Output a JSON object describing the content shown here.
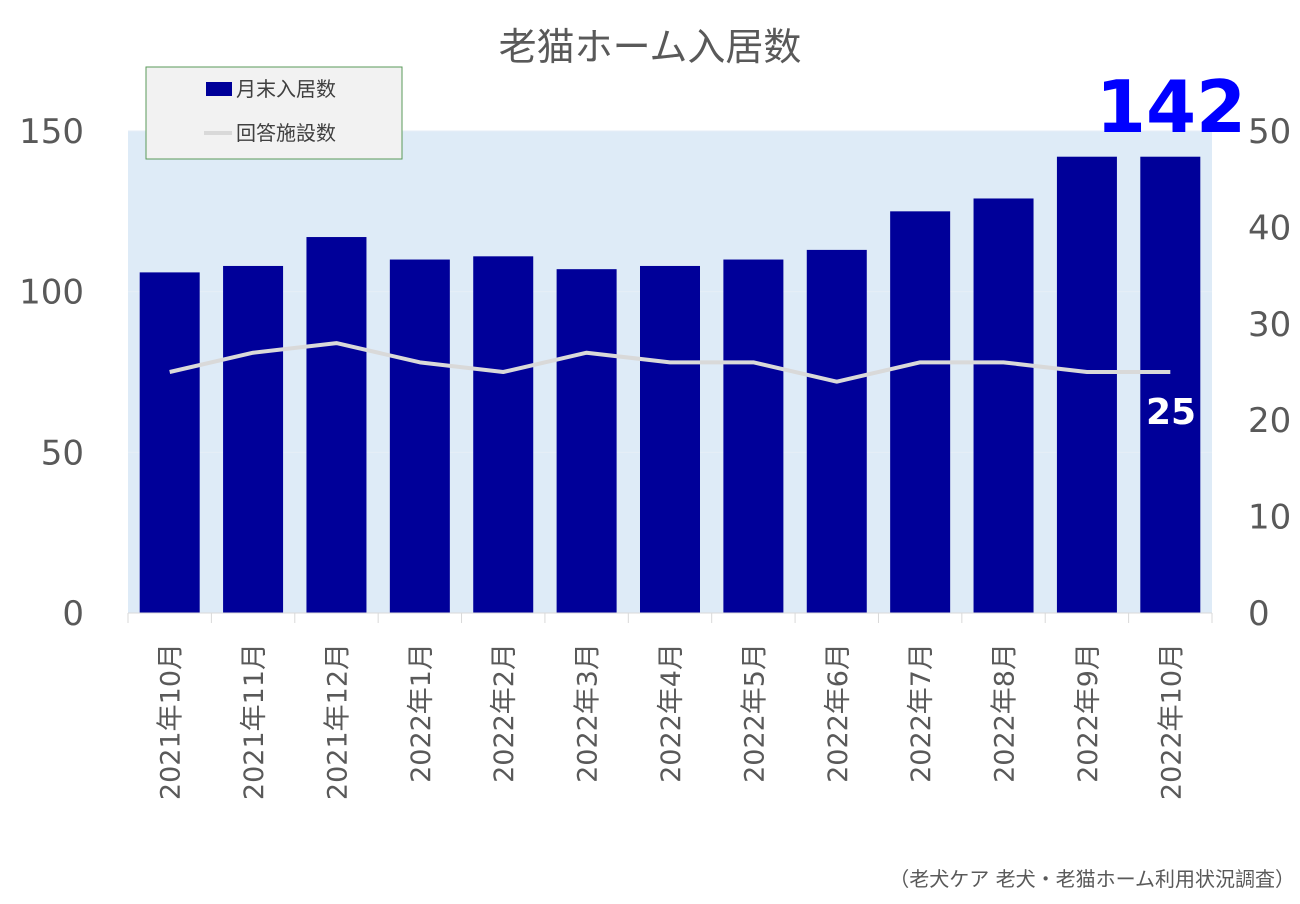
{
  "chart_data": {
    "type": "bar",
    "title": "老猫ホーム入居数",
    "categories": [
      "2021年10月",
      "2021年11月",
      "2021年12月",
      "2022年1月",
      "2022年2月",
      "2022年3月",
      "2022年4月",
      "2022年5月",
      "2022年6月",
      "2022年7月",
      "2022年8月",
      "2022年9月",
      "2022年10月"
    ],
    "series": [
      {
        "name": "月末入居数",
        "kind": "bar",
        "axis": "left",
        "values": [
          106,
          108,
          117,
          110,
          111,
          107,
          108,
          110,
          113,
          125,
          129,
          142,
          142
        ]
      },
      {
        "name": "回答施設数",
        "kind": "line",
        "axis": "right",
        "values": [
          25,
          27,
          28,
          26,
          25,
          27,
          26,
          26,
          24,
          26,
          26,
          25,
          25
        ]
      }
    ],
    "y_left": {
      "min": 0,
      "max": 150,
      "ticks": [
        "0",
        "50",
        "100",
        "150"
      ]
    },
    "y_right": {
      "min": 0,
      "max": 50,
      "ticks": [
        "0",
        "10",
        "20",
        "30",
        "40",
        "50"
      ]
    },
    "callouts": {
      "bar_last": "142",
      "line_last": "25"
    },
    "legend": {
      "position": "top-left"
    },
    "grid": true,
    "colors": {
      "bar": "#000099",
      "line": "#d9d9d9",
      "plot_bg": "#deebf7",
      "callout_big": "#0000ff",
      "callout_small": "#ffffff",
      "legend_border": "#5a9a5a",
      "legend_bg": "#f2f2f2"
    },
    "source": "（老犬ケア 老犬・老猫ホーム利用状況調査）"
  }
}
